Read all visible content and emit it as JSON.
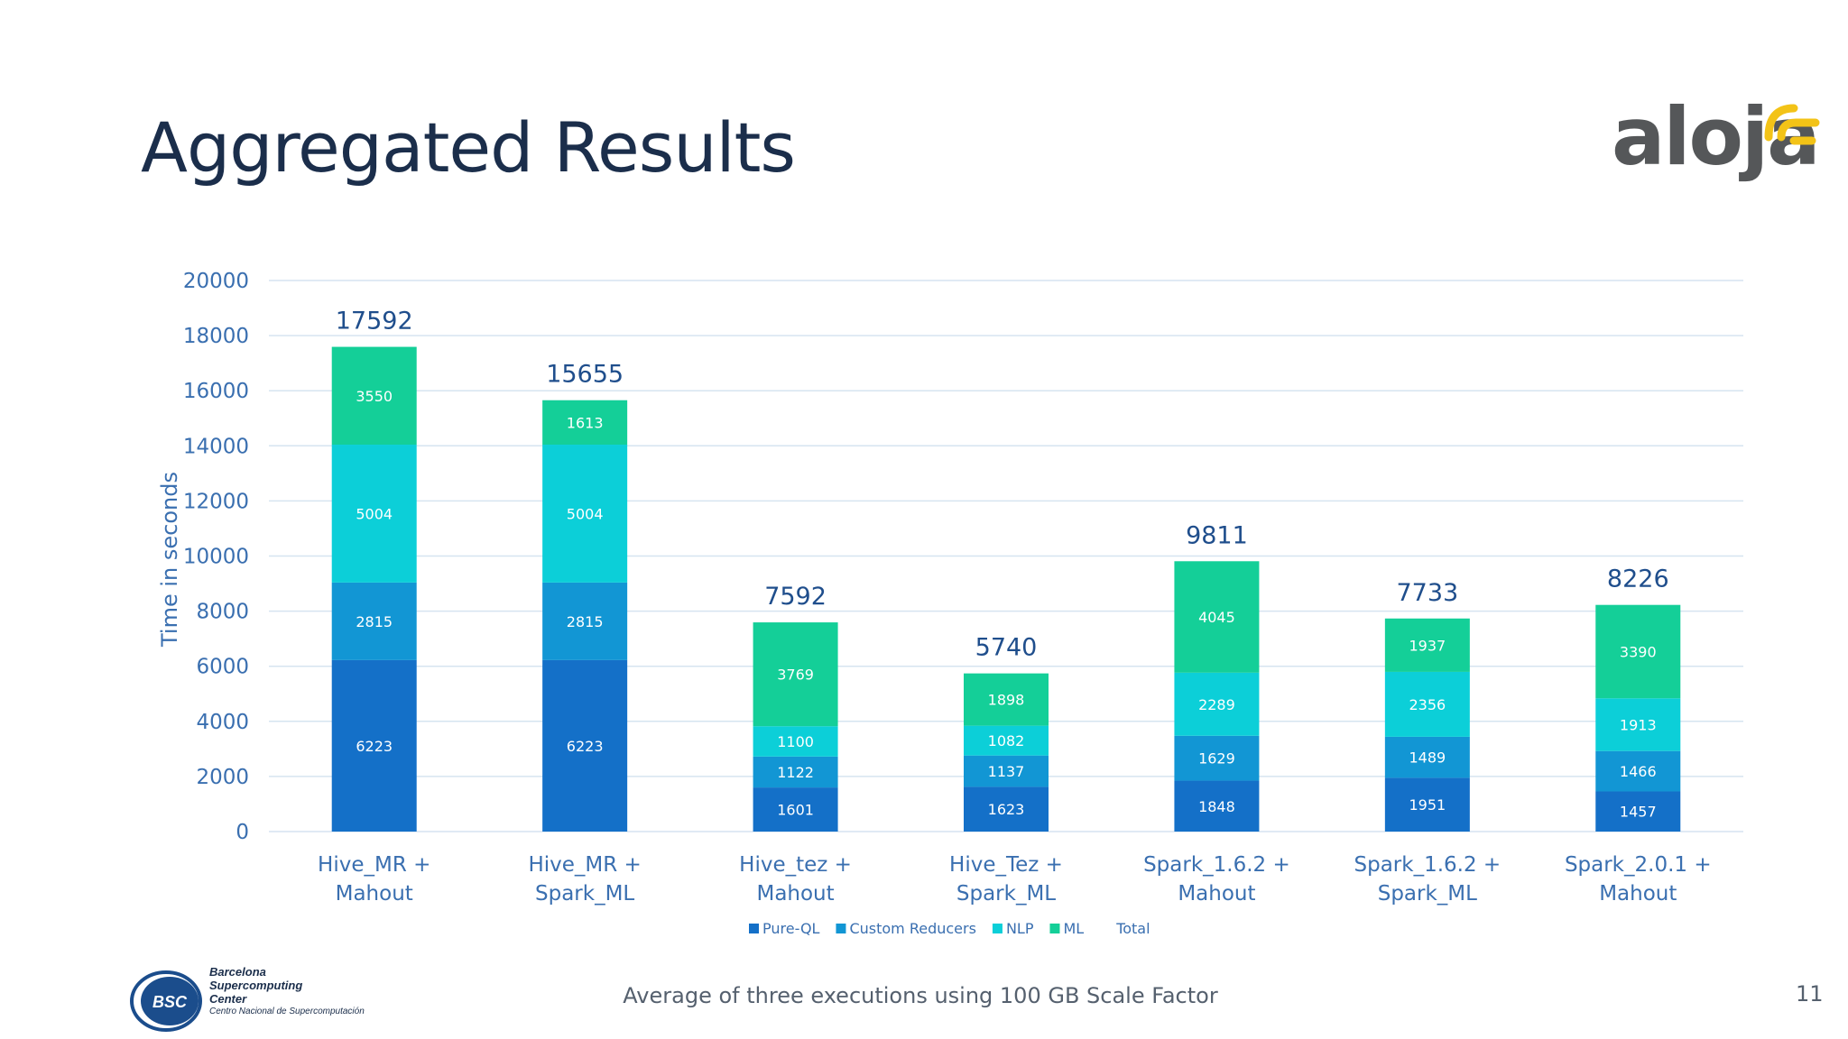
{
  "slide": {
    "title": "Aggregated Results",
    "logo_text": "aloja",
    "footer_note": "Average of three executions using 100 GB Scale Factor",
    "page_number": "11",
    "bsc": {
      "short": "BSC",
      "line1": "Barcelona",
      "line2": "Supercomputing",
      "line3": "Center",
      "line4": "Centro Nacional de Supercomputación"
    }
  },
  "colors": {
    "title": "#1b2e4b",
    "pure_ql": "#1470c8",
    "custom_reducers": "#1296d4",
    "nlp": "#0ccfd8",
    "ml": "#14cf98",
    "axis_text": "#3a6fb0",
    "total_text": "#1f4e8c",
    "grid": "#d6e4f0",
    "aloja_accent": "#f3c317"
  },
  "chart_data": {
    "type": "bar",
    "stacked": true,
    "title": "",
    "xlabel": "",
    "ylabel": "Time in seconds",
    "ylim": [
      0,
      20000
    ],
    "yticks": [
      0,
      2000,
      4000,
      6000,
      8000,
      10000,
      12000,
      14000,
      16000,
      18000,
      20000
    ],
    "grid": true,
    "legend_position": "bottom",
    "categories": [
      [
        "Hive_MR +",
        "Mahout"
      ],
      [
        "Hive_MR +",
        "Spark_ML"
      ],
      [
        "Hive_tez +",
        "Mahout"
      ],
      [
        "Hive_Tez +",
        "Spark_ML"
      ],
      [
        "Spark_1.6.2 +",
        "Mahout"
      ],
      [
        "Spark_1.6.2 +",
        "Spark_ML"
      ],
      [
        "Spark_2.0.1 +",
        "Mahout"
      ]
    ],
    "series": [
      {
        "name": "Pure-QL",
        "color": "#1470c8",
        "values": [
          6223,
          6223,
          1601,
          1623,
          1848,
          1951,
          1457
        ]
      },
      {
        "name": "Custom Reducers",
        "color": "#1296d4",
        "values": [
          2815,
          2815,
          1122,
          1137,
          1629,
          1489,
          1466
        ]
      },
      {
        "name": "NLP",
        "color": "#0ccfd8",
        "values": [
          5004,
          5004,
          1100,
          1082,
          2289,
          2356,
          1913
        ]
      },
      {
        "name": "ML",
        "color": "#14cf98",
        "values": [
          3550,
          1613,
          3769,
          1898,
          4045,
          1937,
          3390
        ]
      }
    ],
    "totals": [
      17592,
      15655,
      7592,
      5740,
      9811,
      7733,
      8226
    ],
    "total_legend_label": "Total"
  }
}
